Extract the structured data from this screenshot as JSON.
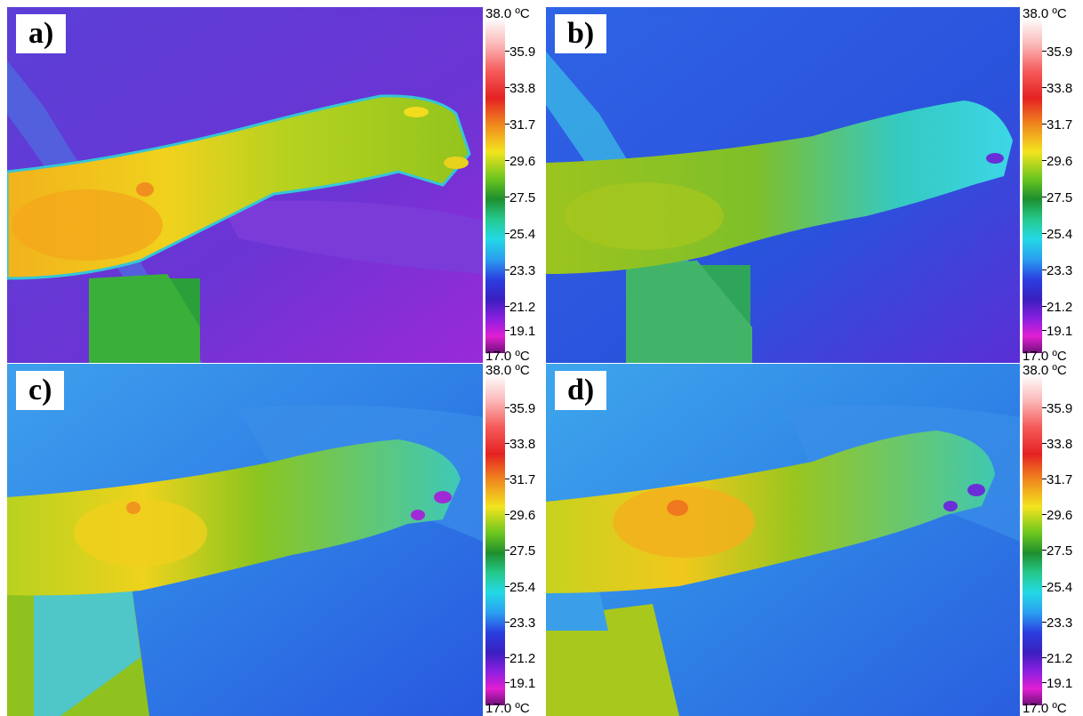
{
  "panels": [
    {
      "label": "a)"
    },
    {
      "label": "b)"
    },
    {
      "label": "c)"
    },
    {
      "label": "d)"
    }
  ],
  "scale": {
    "top": "38.0 ºC",
    "ticks": [
      "35.9",
      "33.8",
      "31.7",
      "29.6",
      "27.5",
      "25.4",
      "23.3",
      "21.2",
      "19.1"
    ],
    "bottom": "17.0 ºC"
  },
  "colors": {
    "background_a": "#6a37d8",
    "background_bcd": "#2c6fe4",
    "arm_warm": "#f2c11d",
    "arm_mid": "#9ccc1f",
    "cool": "#2ed3e6"
  }
}
